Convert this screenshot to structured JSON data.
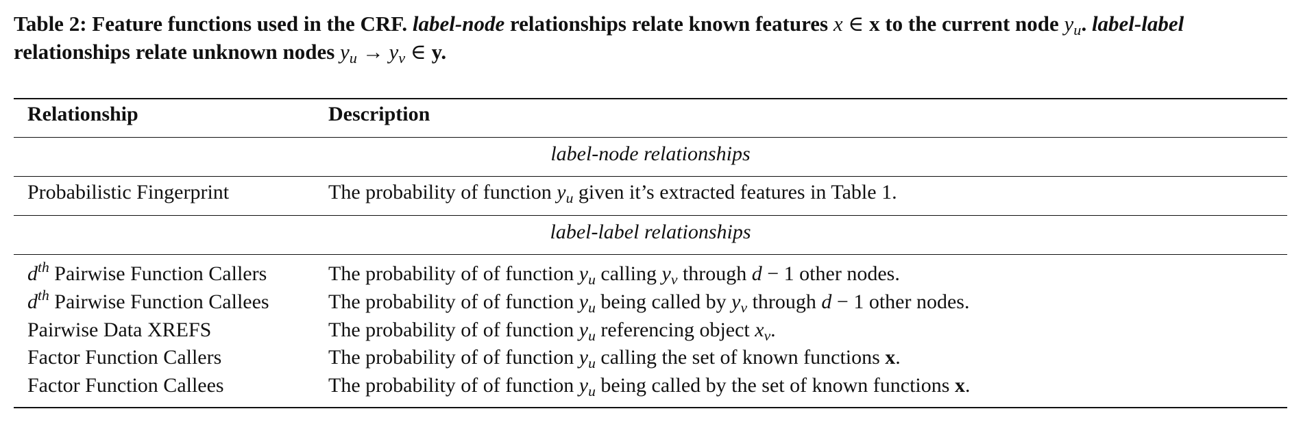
{
  "caption": {
    "label": "Table 2:",
    "text_a": "Feature functions used in the CRF.",
    "label_node": "label-node",
    "text_b": "relationships relate known features",
    "math_a": "x ∈ ",
    "bold_x": "x",
    "text_c": " to the current node ",
    "math_b": "y",
    "math_b_sub": "u",
    "text_d": ".",
    "label_label": "label-label",
    "text_e": "relationships relate unknown nodes",
    "math_c": "y",
    "math_c_sub": "u",
    "arrow": " → ",
    "math_d": "y",
    "math_d_sub": "v",
    "elem": " ∈ ",
    "bold_y": "y",
    "text_f": "."
  },
  "table": {
    "headers": [
      "Relationship",
      "Description"
    ],
    "sections": [
      {
        "title": "label-node relationships",
        "rows": [
          {
            "relationship": "Probabilistic Fingerprint",
            "desc_a": "The probability of function ",
            "desc_b": " given it’s extracted features in Table 1."
          }
        ]
      },
      {
        "title": "label-label relationships",
        "rows": [
          {
            "rel_prefix": "d",
            "rel_sup": "th",
            "relationship": " Pairwise Function Callers",
            "desc_a": "The probability of of function ",
            "desc_b": " calling ",
            "desc_c": " through ",
            "desc_d": "d",
            "desc_e": " − 1 other nodes."
          },
          {
            "rel_prefix": "d",
            "rel_sup": "th",
            "relationship": " Pairwise Function Callees",
            "desc_a": "The probability of of function ",
            "desc_b": " being called by ",
            "desc_c": " through ",
            "desc_d": "d",
            "desc_e": " − 1 other nodes."
          },
          {
            "relationship": "Pairwise Data XREFS",
            "desc_a": "The probability of of function ",
            "desc_b": " referencing object ",
            "desc_c": "x",
            "desc_c_sub": "v",
            "desc_d": "."
          },
          {
            "relationship": "Factor Function Callers",
            "desc_a": "The probability of of function ",
            "desc_b": " calling the set of known functions ",
            "desc_c": "x",
            "desc_d": "."
          },
          {
            "relationship": "Factor Function Callees",
            "desc_a": "The probability of of function ",
            "desc_b": " being called by the set of known functions ",
            "desc_c": "x",
            "desc_d": "."
          }
        ]
      }
    ],
    "math": {
      "y": "y",
      "u": "u",
      "v": "v"
    }
  }
}
